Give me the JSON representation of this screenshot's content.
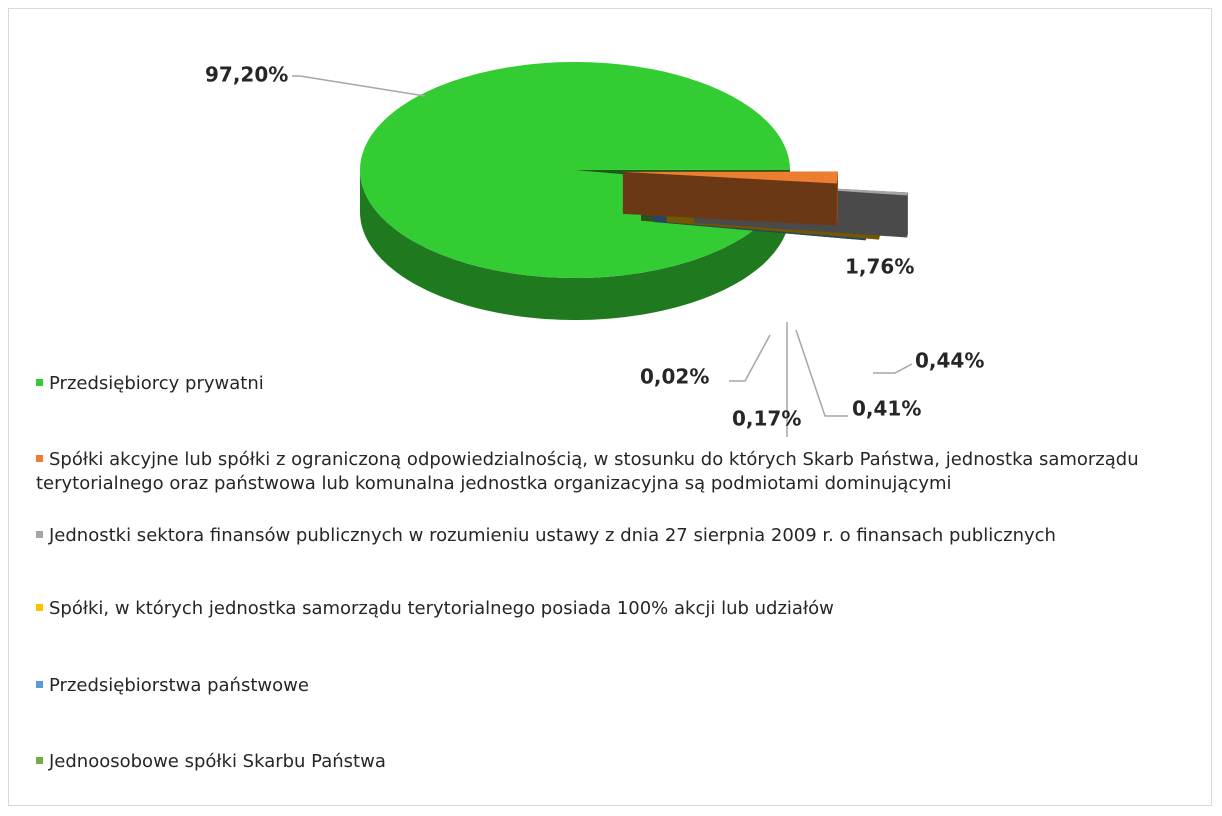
{
  "chart_data": {
    "type": "pie",
    "categories": [
      "Przedsiębiorcy prywatni",
      "Spółki akcyjne lub spółki z ograniczoną odpowiedzialnością, w stosunku do których Skarb Państwa, jednostka samorządu terytorialnego oraz państwowa lub komunalna jednostka organizacyjna są podmiotami dominującymi",
      "Jednostki sektora finansów publicznych w rozumieniu ustawy z dnia 27 sierpnia 2009 r. o finansach publicznych",
      "Spółki, w których jednostka samorządu terytorialnego posiada 100% akcji lub udziałów",
      "Przedsiębiorstwa państwowe",
      "Jednoosobowe spółki Skarbu Państwa"
    ],
    "values": [
      97.2,
      1.76,
      0.44,
      0.41,
      0.17,
      0.02
    ],
    "value_labels": [
      "97,20%",
      "1,76%",
      "0,44%",
      "0,41%",
      "0,17%",
      "0,02%"
    ],
    "colors": [
      "#33cc33",
      "#ed7d31",
      "#a5a5a5",
      "#ffc000",
      "#5b9bd5",
      "#70ad47"
    ],
    "legend": "left"
  }
}
